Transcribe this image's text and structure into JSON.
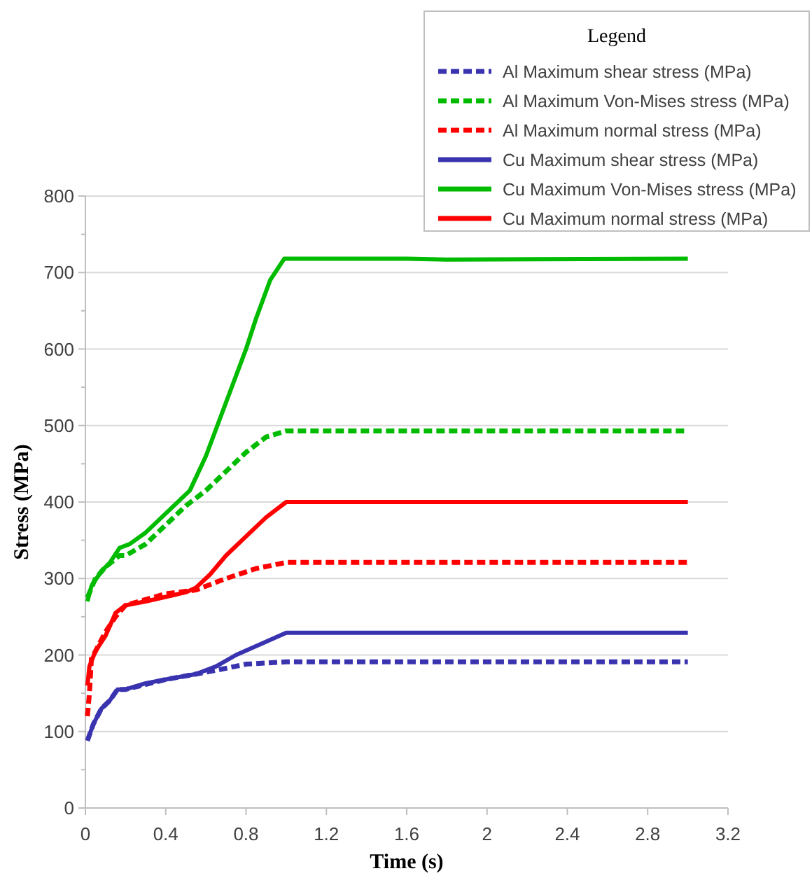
{
  "chart_data": {
    "type": "line",
    "xlabel": "Time (s)",
    "ylabel": "Stress (MPa)",
    "legend_title": "Legend",
    "legend": "top right",
    "grid": "y",
    "xlim": [
      0,
      3.2
    ],
    "xticks": [
      0,
      0.4,
      0.8,
      1.2,
      1.6,
      2,
      2.4,
      2.8,
      3.2
    ],
    "ylim": [
      0,
      800
    ],
    "yticks": [
      0,
      100,
      200,
      300,
      400,
      500,
      600,
      700,
      800
    ],
    "series": [
      {
        "name": "Al Maximum shear stress (MPa)",
        "color": "#3a33b0",
        "line_style": "dashed",
        "x": [
          0.01,
          0.04,
          0.08,
          0.12,
          0.16,
          0.2,
          0.4,
          0.55,
          0.65,
          0.8,
          1.0,
          3.0
        ],
        "values": [
          88,
          110,
          130,
          140,
          155,
          155,
          168,
          175,
          180,
          188,
          191,
          191
        ]
      },
      {
        "name": "Al Maximum Von-Mises stress (MPa)",
        "color": "#00bb00",
        "line_style": "dashed",
        "x": [
          0.01,
          0.05,
          0.1,
          0.17,
          0.2,
          0.3,
          0.4,
          0.5,
          0.6,
          0.7,
          0.8,
          0.9,
          1.0,
          3.0
        ],
        "values": [
          275,
          300,
          315,
          330,
          330,
          345,
          370,
          395,
          415,
          440,
          465,
          485,
          493,
          493
        ]
      },
      {
        "name": "Al Maximum normal stress (MPa)",
        "color": "#ff0000",
        "line_style": "dashed",
        "x": [
          0.01,
          0.02,
          0.03,
          0.1,
          0.15,
          0.2,
          0.4,
          0.55,
          0.7,
          0.85,
          1.0,
          3.0
        ],
        "values": [
          120,
          150,
          195,
          230,
          250,
          265,
          280,
          285,
          300,
          313,
          321,
          321
        ]
      },
      {
        "name": "Cu Maximum shear stress (MPa)",
        "color": "#3a33b0",
        "line_style": "solid",
        "x": [
          0.01,
          0.04,
          0.08,
          0.12,
          0.16,
          0.2,
          0.3,
          0.4,
          0.55,
          0.65,
          0.75,
          0.88,
          1.0,
          3.0
        ],
        "values": [
          88,
          110,
          130,
          140,
          155,
          155,
          163,
          168,
          175,
          185,
          200,
          215,
          229,
          229
        ]
      },
      {
        "name": "Cu Maximum Von-Mises stress (MPa)",
        "color": "#00bb00",
        "line_style": "solid",
        "x": [
          0.01,
          0.03,
          0.08,
          0.12,
          0.17,
          0.22,
          0.3,
          0.4,
          0.52,
          0.6,
          0.7,
          0.8,
          0.85,
          0.92,
          0.99,
          1.6,
          1.8,
          3.0
        ],
        "values": [
          270,
          290,
          310,
          320,
          340,
          345,
          360,
          385,
          415,
          460,
          530,
          600,
          640,
          690,
          718,
          718,
          717,
          718
        ]
      },
      {
        "name": "Cu Maximum normal stress (MPa)",
        "color": "#ff0000",
        "line_style": "solid",
        "x": [
          0.01,
          0.02,
          0.05,
          0.1,
          0.15,
          0.2,
          0.3,
          0.5,
          0.55,
          0.62,
          0.7,
          0.82,
          0.9,
          1.0,
          3.0
        ],
        "values": [
          160,
          185,
          205,
          225,
          255,
          265,
          270,
          282,
          288,
          305,
          330,
          360,
          380,
          400,
          400
        ]
      }
    ]
  }
}
